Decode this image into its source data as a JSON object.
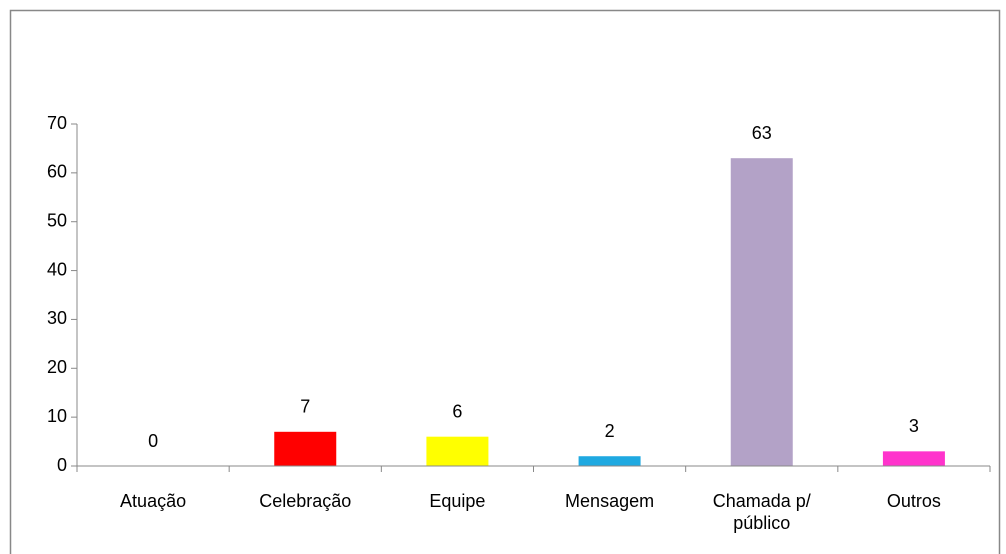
{
  "chart_data": {
    "type": "bar",
    "categories": [
      "Atuação",
      "Celebração",
      "Equipe",
      "Mensagem",
      "Chamada p/ público",
      "Outros"
    ],
    "values": [
      0,
      7,
      6,
      2,
      63,
      3
    ],
    "colors": [
      "#4f81bd",
      "#ff0000",
      "#ffff00",
      "#1fa9e1",
      "#b3a2c7",
      "#ff33cc"
    ],
    "ylim": [
      0,
      70
    ],
    "yticks": [
      0,
      10,
      20,
      30,
      40,
      50,
      60,
      70
    ],
    "grid": false
  }
}
